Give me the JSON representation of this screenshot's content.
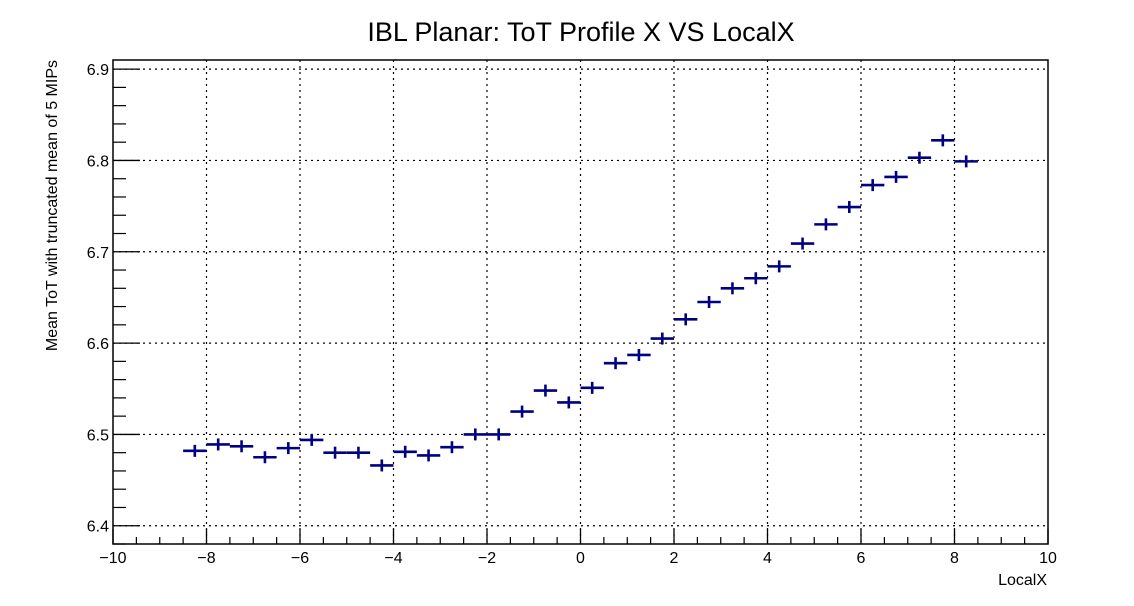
{
  "chart_data": {
    "type": "scatter",
    "title": "IBL Planar: ToT Profile X VS LocalX",
    "xlabel": "LocalX",
    "ylabel": "Mean ToT with truncated mean of 5 MIPs",
    "xlim": [
      -10,
      10
    ],
    "ylim": [
      6.38,
      6.91
    ],
    "grid": true,
    "x_ticks": [
      -10,
      -8,
      -6,
      -4,
      -2,
      0,
      2,
      4,
      6,
      8,
      10
    ],
    "x_tick_labels": [
      "−10",
      "−8",
      "−6",
      "−4",
      "−2",
      "0",
      "2",
      "4",
      "6",
      "8",
      "10"
    ],
    "y_ticks": [
      6.4,
      6.5,
      6.6,
      6.7,
      6.8,
      6.9
    ],
    "y_tick_labels": [
      "6.4",
      "6.5",
      "6.6",
      "6.7",
      "6.8",
      "6.9"
    ],
    "bin_width": 0.5,
    "marker_color": "#000080",
    "x": [
      -8.25,
      -7.75,
      -7.25,
      -6.75,
      -6.25,
      -5.75,
      -5.25,
      -4.75,
      -4.25,
      -3.75,
      -3.25,
      -2.75,
      -2.25,
      -1.75,
      -1.25,
      -0.75,
      -0.25,
      0.25,
      0.75,
      1.25,
      1.75,
      2.25,
      2.75,
      3.25,
      3.75,
      4.25,
      4.75,
      5.25,
      5.75,
      6.25,
      6.75,
      7.25,
      7.75,
      8.25
    ],
    "y": [
      6.482,
      6.489,
      6.487,
      6.475,
      6.485,
      6.494,
      6.48,
      6.48,
      6.466,
      6.481,
      6.477,
      6.486,
      6.5,
      6.5,
      6.525,
      6.548,
      6.535,
      6.551,
      6.578,
      6.587,
      6.605,
      6.626,
      6.645,
      6.66,
      6.671,
      6.684,
      6.709,
      6.73,
      6.749,
      6.773,
      6.782,
      6.803,
      6.822,
      6.799
    ]
  }
}
